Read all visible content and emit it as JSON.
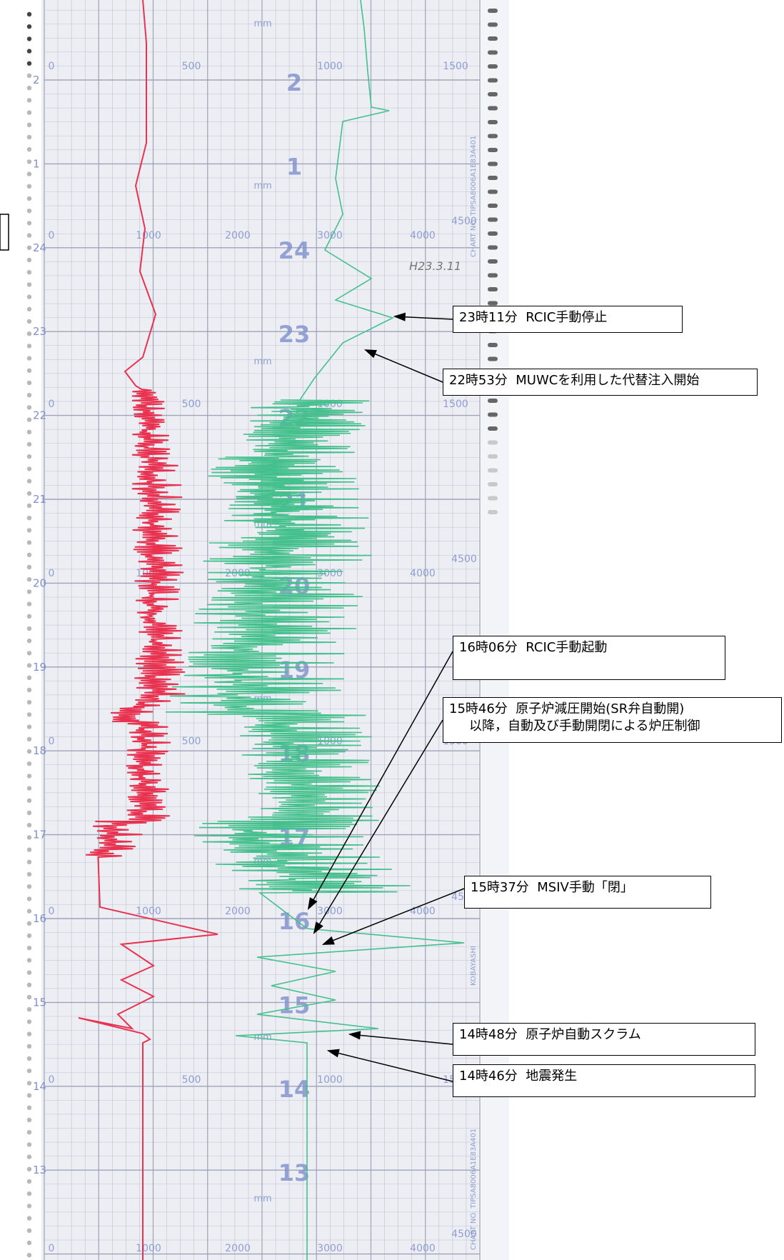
{
  "chart": {
    "unit_label": "mm",
    "handwritten_date": "H23.3.11",
    "chart_no": "CHART NO. TIPSA8006A1E83A401",
    "recorder_mark": "KOBAYASHI"
  },
  "colors": {
    "paper": "#eceef4",
    "grid": "#9aa0b5",
    "scale_text": "#8f9ed0",
    "hour_text": "#7f8fcb",
    "red_trace": "#e8324f",
    "green_trace": "#44c08c"
  },
  "hours": [
    "2",
    "1",
    "24",
    "23",
    "22",
    "21",
    "20",
    "19",
    "18",
    "17",
    "16",
    "15",
    "14",
    "13"
  ],
  "scales": {
    "level": [
      "0",
      "500",
      "1000",
      "1500"
    ],
    "pressure": [
      "0",
      "1000",
      "2000",
      "3000",
      "4000",
      "4500"
    ]
  },
  "annotations": [
    {
      "time": "23時11分",
      "text": "RCIC手動停止"
    },
    {
      "time": "22時53分",
      "text": "MUWCを利用した代替注入開始"
    },
    {
      "time": "16時06分",
      "text": "RCIC手動起動"
    },
    {
      "time": "15時46分",
      "text": "原子炉減圧開始(SR弁自動開)",
      "line2": "以降，自動及び手動開閉による炉圧制御"
    },
    {
      "time": "15時37分",
      "text": "MSIV手動「閉」"
    },
    {
      "time": "14時48分",
      "text": "原子炉自動スクラム"
    },
    {
      "time": "14時46分",
      "text": "地震発生"
    }
  ]
}
